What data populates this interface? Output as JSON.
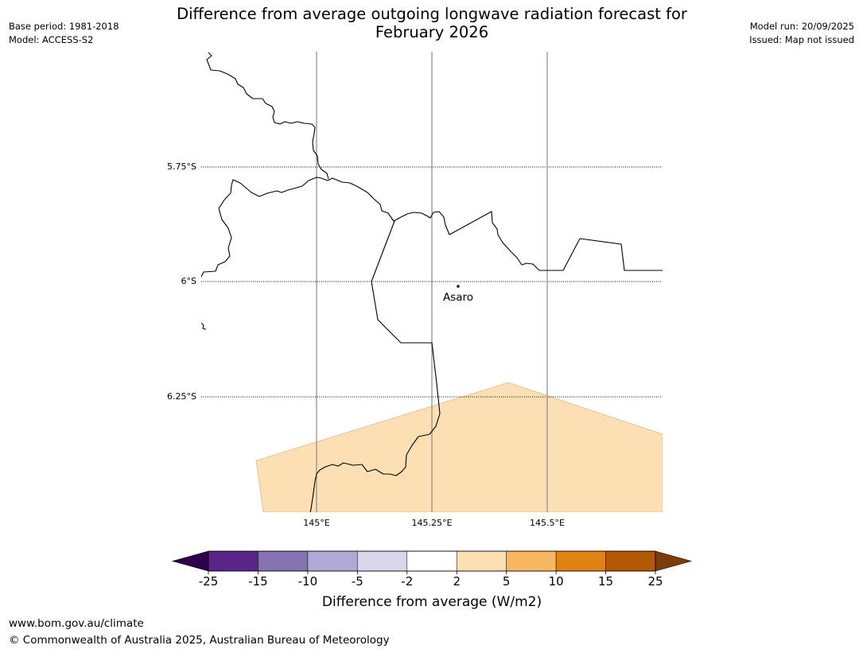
{
  "header": {
    "title_line1": "Difference from average outgoing longwave radiation forecast for",
    "title_line2": "February 2026",
    "base_period": "Base period: 1981-2018",
    "model": "Model: ACCESS-S2",
    "model_run": "Model run: 20/09/2025",
    "issued": "Issued: Map not issued"
  },
  "map": {
    "lat_labels": [
      "5.75°S",
      "6°S",
      "6.25°S"
    ],
    "lon_labels": [
      "145°E",
      "145.25°E",
      "145.5°E"
    ],
    "place": {
      "name": "Asaro"
    },
    "shaded_region_category": "2 to 5",
    "shaded_region_color": "#fce0b4"
  },
  "legend": {
    "title": "Difference from average (W/m2)",
    "ticks": [
      "-25",
      "-15",
      "-10",
      "-5",
      "-2",
      "2",
      "5",
      "10",
      "15",
      "25"
    ],
    "colors": [
      "#5a2488",
      "#8373af",
      "#b1a9d3",
      "#d9d8ea",
      "#ffffff",
      "#fce0b4",
      "#f9b660",
      "#e08214",
      "#b35806"
    ],
    "under_color": "#2d004b",
    "over_color": "#7f3b08"
  },
  "footer": {
    "url": "www.bom.gov.au/climate",
    "copyright": "© Commonwealth of Australia 2025, Australian Bureau of Meteorology"
  }
}
